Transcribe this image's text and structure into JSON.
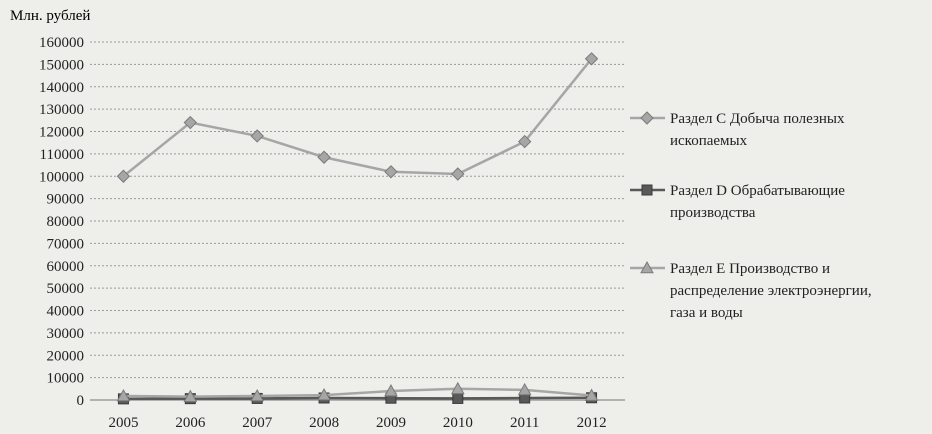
{
  "chart_data": {
    "type": "line",
    "title": "",
    "ylabel": "Млн. рублей",
    "xlabel": "",
    "categories": [
      "2005",
      "2006",
      "2007",
      "2008",
      "2009",
      "2010",
      "2011",
      "2012"
    ],
    "ylim": [
      0,
      160000
    ],
    "yticks": [
      0,
      10000,
      20000,
      30000,
      40000,
      50000,
      60000,
      70000,
      80000,
      90000,
      100000,
      110000,
      120000,
      130000,
      140000,
      150000,
      160000
    ],
    "grid": true,
    "legend_position": "right",
    "series": [
      {
        "name_lines": [
          "Раздел С Добыча полезных",
          "ископаемых"
        ],
        "marker": "diamond",
        "color": "#a6a6a6",
        "values": [
          100000,
          124000,
          118000,
          108500,
          102000,
          101000,
          115500,
          152500
        ]
      },
      {
        "name_lines": [
          "Раздел D Обрабатывающие",
          "производства"
        ],
        "marker": "square",
        "color": "#595959",
        "values": [
          500,
          600,
          700,
          900,
          800,
          700,
          900,
          1000
        ]
      },
      {
        "name_lines": [
          "Раздел Е Производство и",
          "распределение электроэнергии,",
          "газа и воды"
        ],
        "marker": "triangle",
        "color": "#a6a6a6",
        "values": [
          1800,
          1500,
          1800,
          2200,
          4000,
          5000,
          4500,
          2000
        ]
      }
    ]
  }
}
